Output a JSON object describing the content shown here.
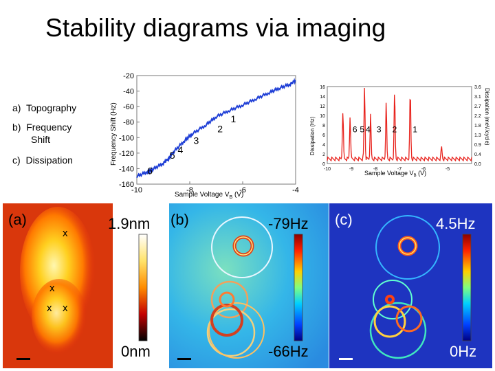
{
  "slide": {
    "title": "Stability diagrams via imaging",
    "legend": [
      {
        "letter": "a)",
        "text": "Topography"
      },
      {
        "letter": "b)",
        "text": "Frequency",
        "text2": "Shift"
      },
      {
        "letter": "c)",
        "text": "Dissipation"
      }
    ]
  },
  "chart_data": [
    {
      "type": "line",
      "xlabel": "Sample Voltage V",
      "xlabel_sub": "B",
      "xlabel_unit": " (V)",
      "ylabel": "Frequency Shift (Hz)",
      "xlim": [
        -10,
        -4
      ],
      "ylim": [
        -160,
        -20
      ],
      "x_ticks": [
        -10,
        -8,
        -6,
        -4
      ],
      "y_ticks": [
        -20,
        -40,
        -60,
        -80,
        -100,
        -120,
        -140,
        -160
      ],
      "series": [
        {
          "color": "#1f3fd6",
          "x": [
            -10,
            -9.6,
            -9.4,
            -9.0,
            -8.8,
            -8.6,
            -8.2,
            -7.9,
            -7.4,
            -7.0,
            -6.5,
            -6.0,
            -5.5,
            -5.0,
            -4.6,
            -4.2,
            -4.0
          ],
          "y": [
            -150,
            -144,
            -141,
            -133,
            -127,
            -118,
            -104,
            -95,
            -84,
            -73,
            -65,
            -58,
            -50,
            -42,
            -36,
            -31,
            -26
          ]
        }
      ],
      "annotations": [
        {
          "text": "6",
          "x": -9.45,
          "y": -133
        },
        {
          "text": "5",
          "x": -8.6,
          "y": -113
        },
        {
          "text": "4",
          "x": -8.3,
          "y": -106
        },
        {
          "text": "3",
          "x": -7.7,
          "y": -94
        },
        {
          "text": "2",
          "x": -6.8,
          "y": -79
        },
        {
          "text": "1",
          "x": -6.3,
          "y": -66
        }
      ]
    },
    {
      "type": "line",
      "xlabel": "Sample Voltage V",
      "xlabel_sub": "B",
      "xlabel_unit": " (V)",
      "ylabel": "Dissipation (Hz)",
      "ylabel_right": "Dissipation (meV/cycle)",
      "xlim": [
        -10,
        -4
      ],
      "ylim": [
        0,
        16
      ],
      "x_ticks": [
        -10,
        -9,
        -8,
        -7,
        -6,
        -5
      ],
      "y_ticks": [
        0,
        2,
        4,
        6,
        8,
        10,
        12,
        14,
        16
      ],
      "y_ticks_right": [
        "3.6",
        "3.1",
        "2.7",
        "2.2",
        "1.8",
        "1.3",
        "0.9",
        "0.4",
        "0.0"
      ],
      "series": [
        {
          "color": "#e8221c",
          "peaks": [
            {
              "x": -9.35,
              "y": 10
            },
            {
              "x": -9.05,
              "y": 9
            },
            {
              "x": -8.45,
              "y": 15
            },
            {
              "x": -8.2,
              "y": 9
            },
            {
              "x": -7.55,
              "y": 11.5
            },
            {
              "x": -7.2,
              "y": 14
            },
            {
              "x": -6.55,
              "y": 14
            },
            {
              "x": -5.25,
              "y": 2.5
            }
          ]
        }
      ],
      "annotations": [
        "6",
        "5",
        "4",
        "3",
        "2",
        "1"
      ]
    }
  ],
  "maps": {
    "a": {
      "label": "(a)",
      "max": "1.9nm",
      "min": "0nm",
      "markers": [
        "x",
        "x",
        "x",
        "x"
      ]
    },
    "b": {
      "label": "(b)",
      "max": "-79Hz",
      "min": "-66Hz"
    },
    "c": {
      "label": "(c)",
      "max": "4.5Hz",
      "min": "0Hz"
    }
  },
  "colors": {
    "title": "#000000",
    "freq_series": "#1f3fd6",
    "diss_series": "#e8221c"
  }
}
